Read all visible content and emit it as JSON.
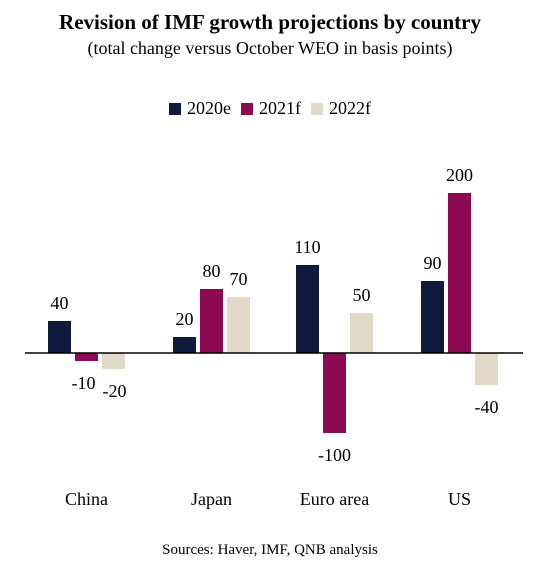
{
  "chart_data": {
    "type": "bar",
    "title": "Revision of IMF growth projections by country",
    "subtitle": "(total change versus October WEO in basis points)",
    "categories": [
      "China",
      "Japan",
      "Euro area",
      "US"
    ],
    "series": [
      {
        "name": "2020e",
        "values": [
          40,
          20,
          110,
          90
        ],
        "color": "#0f1a3c"
      },
      {
        "name": "2021f",
        "values": [
          -10,
          80,
          -100,
          200
        ],
        "color": "#8b0a52"
      },
      {
        "name": "2022f",
        "values": [
          -20,
          70,
          50,
          -40
        ],
        "color": "#e2dac8"
      }
    ],
    "data_labels": [
      [
        "40",
        "20",
        "110",
        "90"
      ],
      [
        "-10",
        "80",
        "-100",
        "200"
      ],
      [
        "-20",
        "70",
        "50",
        "-40"
      ]
    ],
    "ylim": [
      -130,
      210
    ],
    "grid": false,
    "legend_position": "top-center",
    "source": "Sources: Haver, IMF, QNB analysis"
  }
}
